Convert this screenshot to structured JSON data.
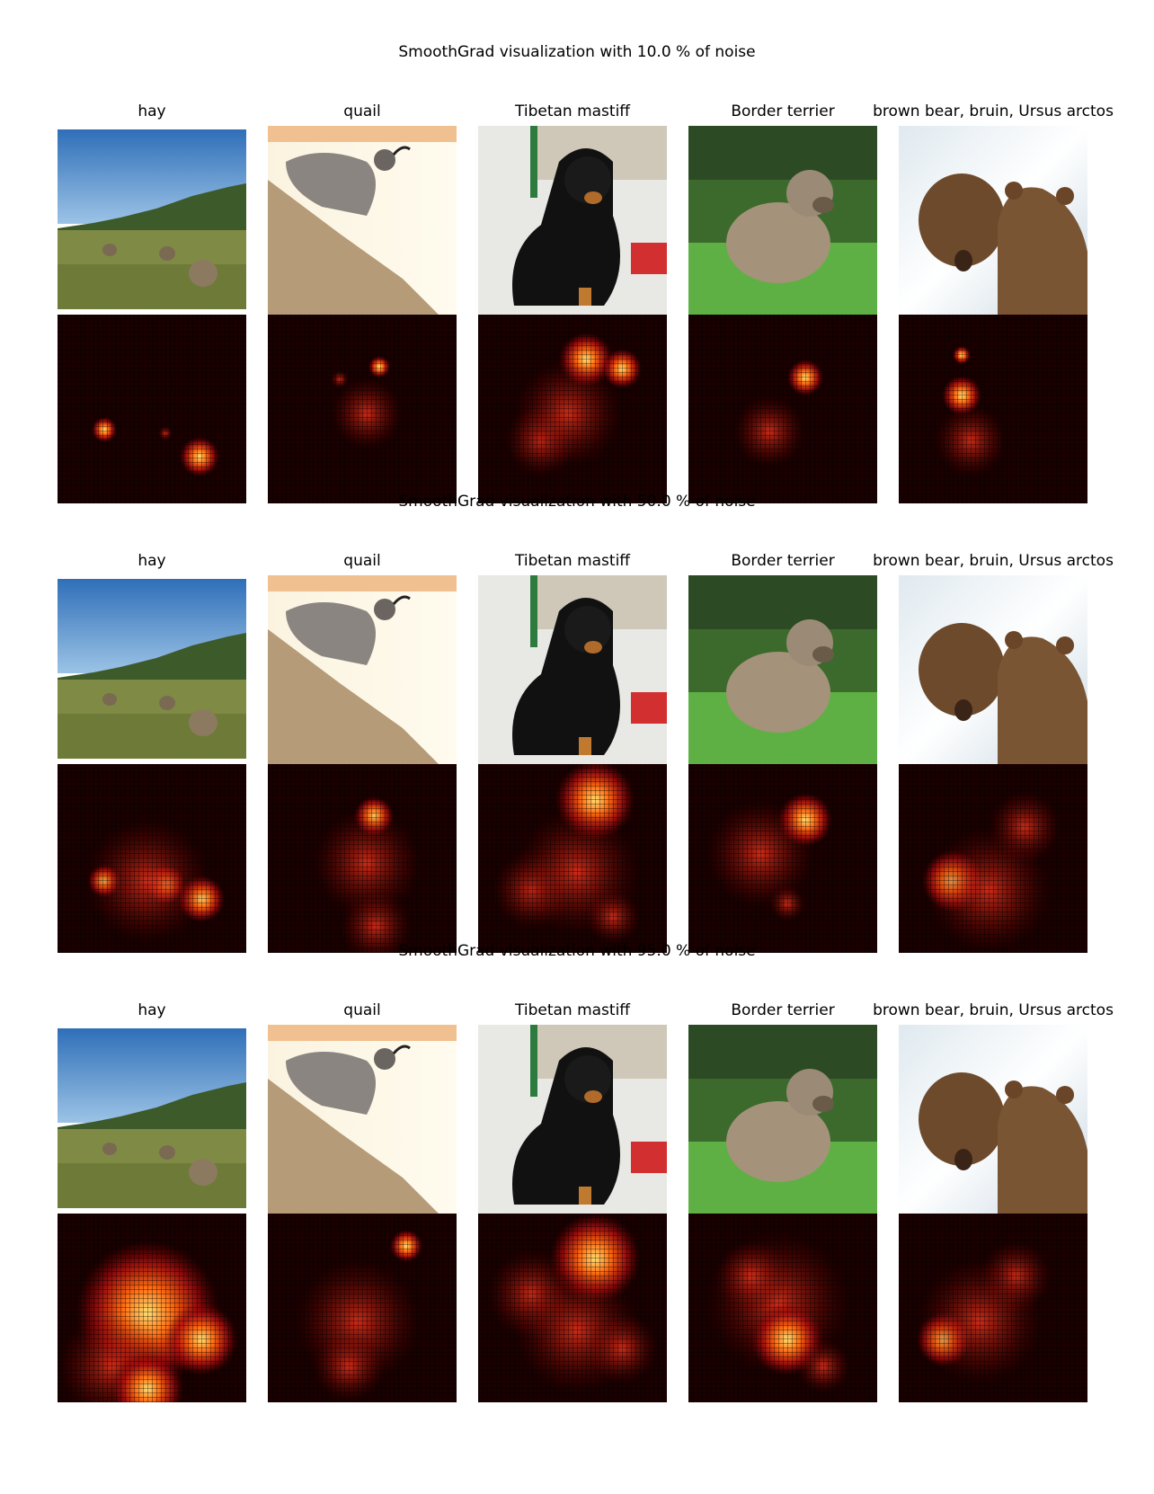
{
  "sections": [
    {
      "title": "SmoothGrad visualization with 10.0 % of noise",
      "labels": [
        "hay",
        "quail",
        "Tibetan mastiff",
        "Border terrier",
        "brown bear, bruin, Ursus arctos"
      ]
    },
    {
      "title": "SmoothGrad visualization with 50.0 % of noise",
      "labels": [
        "hay",
        "quail",
        "Tibetan mastiff",
        "Border terrier",
        "brown bear, bruin, Ursus arctos"
      ]
    },
    {
      "title": "SmoothGrad visualization with 95.0 % of noise",
      "labels": [
        "hay",
        "quail",
        "Tibetan mastiff",
        "Border terrier",
        "brown bear, bruin, Ursus arctos"
      ]
    }
  ],
  "colors": {
    "heat_dark": "#1a0000",
    "heat_mid": "#b01010",
    "heat_hot": "#ffd040"
  }
}
